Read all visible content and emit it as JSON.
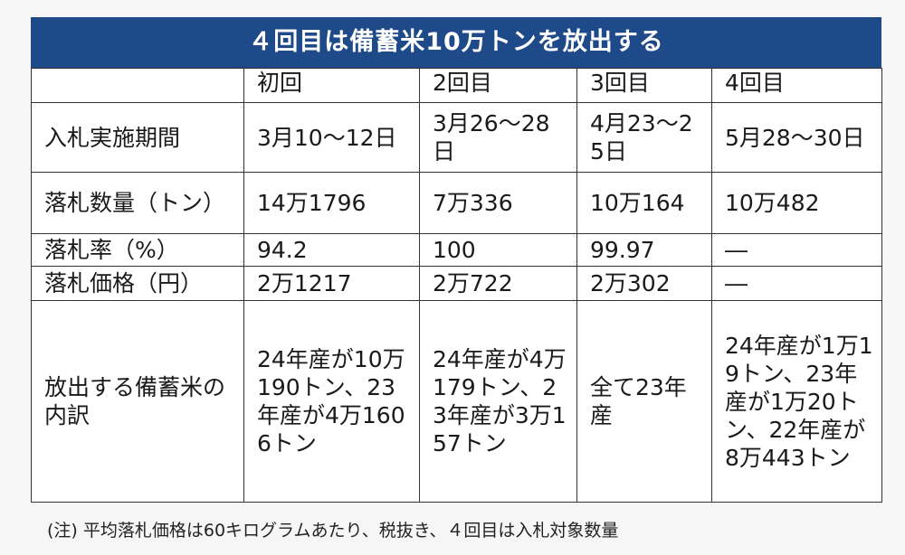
{
  "title": "４回目は備蓄米10万トンを放出する",
  "columns": [
    "",
    "初回",
    "2回目",
    "3回目",
    "4回目"
  ],
  "rows": [
    {
      "label": "入札実施期間",
      "cells": [
        "3月10～12日",
        "3月26～28日",
        "4月23～25日",
        "5月28～30日"
      ]
    },
    {
      "label": "落札数量（トン）",
      "cells": [
        "14万1796",
        "7万336",
        "10万164",
        "10万482"
      ]
    },
    {
      "label": "落札率（%）",
      "cells": [
        "94.2",
        "100",
        "99.97",
        "―"
      ]
    },
    {
      "label": "落札価格（円）",
      "cells": [
        "2万1217",
        "2万722",
        "2万302",
        "―"
      ]
    },
    {
      "label": "放出する備蓄米の内訳",
      "cells": [
        "24年産が10万190トン、23年産が4万1606トン",
        "24年産が4万179トン、23年産が3万157トン",
        "全て23年産",
        "24年産が1万19トン、23年産が1万20トン、22年産が8万443トン"
      ]
    }
  ],
  "note": "(注) 平均落札価格は60キログラムあたり、税抜き、４回目は入札対象数量"
}
